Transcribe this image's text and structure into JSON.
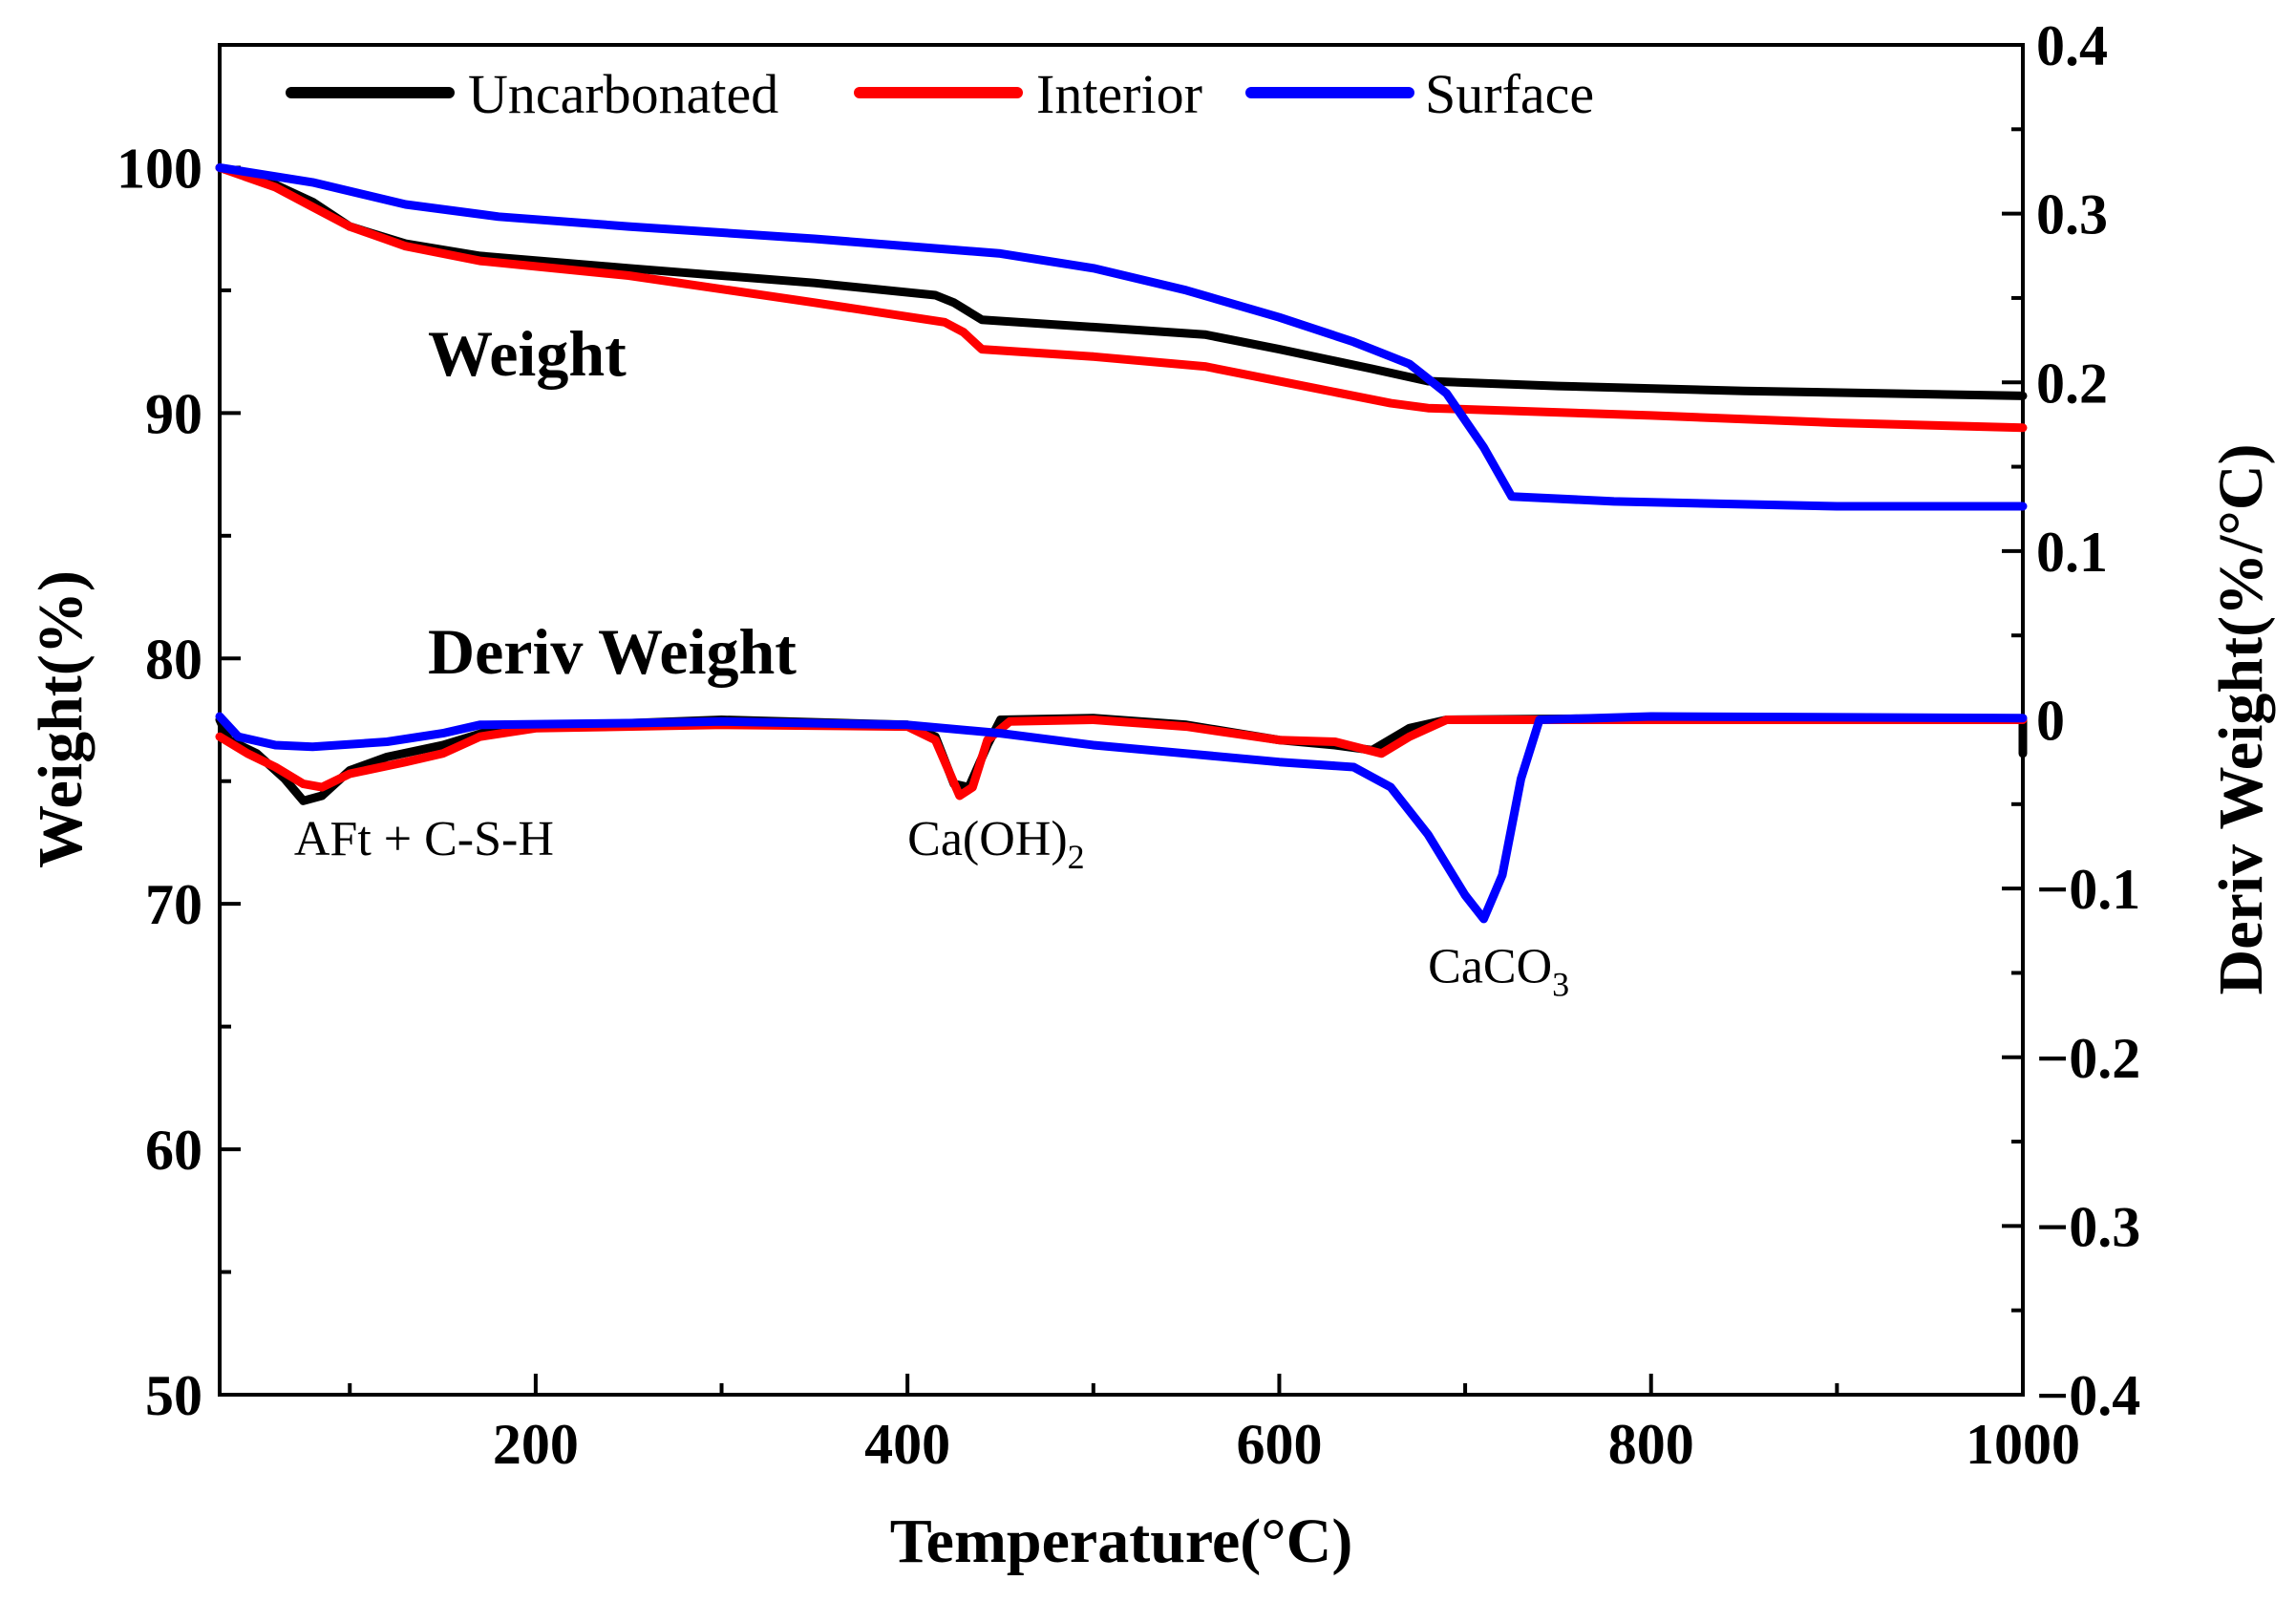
{
  "chart_data": {
    "type": "line",
    "xlabel": "Temperature(°C)",
    "ylabel_left": "Weight(%)",
    "ylabel_right": "Deriv Weight(%/°C)",
    "xlim": [
      30,
      1000
    ],
    "ylim_left": [
      50,
      105
    ],
    "ylim_right": [
      -0.4,
      0.4
    ],
    "x_ticks": [
      200,
      400,
      600,
      800,
      1000
    ],
    "y_left_ticks": [
      50,
      60,
      70,
      80,
      90,
      100
    ],
    "y_right_ticks": [
      "0.4",
      "0.3",
      "0.2",
      "0.1",
      "0",
      "−0.1",
      "−0.2",
      "−0.3",
      "−0.4"
    ],
    "y_right_tick_values": [
      0.4,
      0.3,
      0.2,
      0.1,
      0,
      -0.1,
      -0.2,
      -0.3,
      -0.4
    ],
    "legend": {
      "placement": "top",
      "entries": [
        "Uncarbonated",
        "Interior",
        "Surface"
      ]
    },
    "curve_labels": {
      "weight": "Weight",
      "deriv": "Deriv Weight"
    },
    "annotations": [
      {
        "text": "AFt + C-S-H",
        "sub": "",
        "x": 70,
        "y": 72.0
      },
      {
        "text": "Ca(OH)",
        "sub": "2",
        "x": 400,
        "y": 72.0
      },
      {
        "text": "CaCO",
        "sub": "3",
        "x": 680,
        "y": 66.8
      }
    ],
    "weight_series": [
      {
        "name": "Uncarbonated",
        "color": "#000000",
        "points": [
          [
            30,
            100
          ],
          [
            60,
            99.3
          ],
          [
            80,
            98.6
          ],
          [
            100,
            97.6
          ],
          [
            130,
            96.9
          ],
          [
            170,
            96.4
          ],
          [
            250,
            95.9
          ],
          [
            350,
            95.3
          ],
          [
            415,
            94.8
          ],
          [
            425,
            94.5
          ],
          [
            440,
            93.8
          ],
          [
            500,
            93.5
          ],
          [
            560,
            93.2
          ],
          [
            600,
            92.6
          ],
          [
            650,
            91.8
          ],
          [
            680,
            91.3
          ],
          [
            750,
            91.1
          ],
          [
            850,
            90.9
          ],
          [
            1000,
            90.7
          ]
        ]
      },
      {
        "name": "Interior",
        "color": "#ff0000",
        "points": [
          [
            30,
            100
          ],
          [
            60,
            99.2
          ],
          [
            80,
            98.4
          ],
          [
            100,
            97.6
          ],
          [
            130,
            96.8
          ],
          [
            170,
            96.2
          ],
          [
            250,
            95.6
          ],
          [
            350,
            94.5
          ],
          [
            420,
            93.7
          ],
          [
            430,
            93.3
          ],
          [
            440,
            92.6
          ],
          [
            500,
            92.3
          ],
          [
            560,
            91.9
          ],
          [
            620,
            91.0
          ],
          [
            660,
            90.4
          ],
          [
            680,
            90.2
          ],
          [
            800,
            89.9
          ],
          [
            900,
            89.6
          ],
          [
            1000,
            89.4
          ]
        ]
      },
      {
        "name": "Surface",
        "color": "#0000ff",
        "points": [
          [
            30,
            100
          ],
          [
            80,
            99.4
          ],
          [
            130,
            98.5
          ],
          [
            180,
            98.0
          ],
          [
            250,
            97.6
          ],
          [
            350,
            97.1
          ],
          [
            450,
            96.5
          ],
          [
            500,
            95.9
          ],
          [
            550,
            95.0
          ],
          [
            600,
            93.9
          ],
          [
            640,
            92.9
          ],
          [
            670,
            92.0
          ],
          [
            690,
            90.8
          ],
          [
            710,
            88.6
          ],
          [
            725,
            86.6
          ],
          [
            780,
            86.4
          ],
          [
            900,
            86.2
          ],
          [
            1000,
            86.2
          ]
        ]
      }
    ],
    "deriv_series": [
      {
        "name": "Uncarbonated",
        "color": "#000000",
        "points": [
          [
            30,
            0.0
          ],
          [
            35,
            -0.012
          ],
          [
            50,
            -0.02
          ],
          [
            65,
            -0.035
          ],
          [
            75,
            -0.048
          ],
          [
            85,
            -0.045
          ],
          [
            100,
            -0.03
          ],
          [
            120,
            -0.022
          ],
          [
            150,
            -0.015
          ],
          [
            180,
            -0.005
          ],
          [
            300,
            0.0
          ],
          [
            400,
            -0.003
          ],
          [
            415,
            -0.01
          ],
          [
            425,
            -0.038
          ],
          [
            433,
            -0.04
          ],
          [
            443,
            -0.015
          ],
          [
            450,
            0.0
          ],
          [
            500,
            0.001
          ],
          [
            550,
            -0.003
          ],
          [
            600,
            -0.012
          ],
          [
            630,
            -0.015
          ],
          [
            650,
            -0.018
          ],
          [
            670,
            -0.005
          ],
          [
            690,
            0.0
          ],
          [
            800,
            0.001
          ],
          [
            1000,
            0.0
          ],
          [
            1000,
            -0.02
          ]
        ]
      },
      {
        "name": "Interior",
        "color": "#ff0000",
        "points": [
          [
            30,
            -0.01
          ],
          [
            45,
            -0.02
          ],
          [
            60,
            -0.028
          ],
          [
            75,
            -0.038
          ],
          [
            85,
            -0.04
          ],
          [
            100,
            -0.032
          ],
          [
            130,
            -0.025
          ],
          [
            150,
            -0.02
          ],
          [
            170,
            -0.01
          ],
          [
            200,
            -0.005
          ],
          [
            300,
            -0.003
          ],
          [
            400,
            -0.004
          ],
          [
            415,
            -0.012
          ],
          [
            428,
            -0.045
          ],
          [
            435,
            -0.04
          ],
          [
            443,
            -0.012
          ],
          [
            455,
            -0.001
          ],
          [
            500,
            0.0
          ],
          [
            550,
            -0.004
          ],
          [
            600,
            -0.012
          ],
          [
            630,
            -0.013
          ],
          [
            655,
            -0.02
          ],
          [
            670,
            -0.01
          ],
          [
            690,
            0.0
          ],
          [
            800,
            0.0
          ],
          [
            1000,
            0.0
          ]
        ]
      },
      {
        "name": "Surface",
        "color": "#0000ff",
        "points": [
          [
            30,
            0.002
          ],
          [
            40,
            -0.01
          ],
          [
            60,
            -0.015
          ],
          [
            80,
            -0.016
          ],
          [
            120,
            -0.013
          ],
          [
            150,
            -0.008
          ],
          [
            170,
            -0.003
          ],
          [
            250,
            -0.002
          ],
          [
            300,
            -0.001
          ],
          [
            400,
            -0.003
          ],
          [
            450,
            -0.008
          ],
          [
            500,
            -0.015
          ],
          [
            550,
            -0.02
          ],
          [
            600,
            -0.025
          ],
          [
            640,
            -0.028
          ],
          [
            660,
            -0.04
          ],
          [
            680,
            -0.068
          ],
          [
            700,
            -0.104
          ],
          [
            710,
            -0.118
          ],
          [
            720,
            -0.092
          ],
          [
            730,
            -0.035
          ],
          [
            740,
            0.0
          ],
          [
            800,
            0.002
          ],
          [
            1000,
            0.001
          ]
        ]
      }
    ]
  }
}
